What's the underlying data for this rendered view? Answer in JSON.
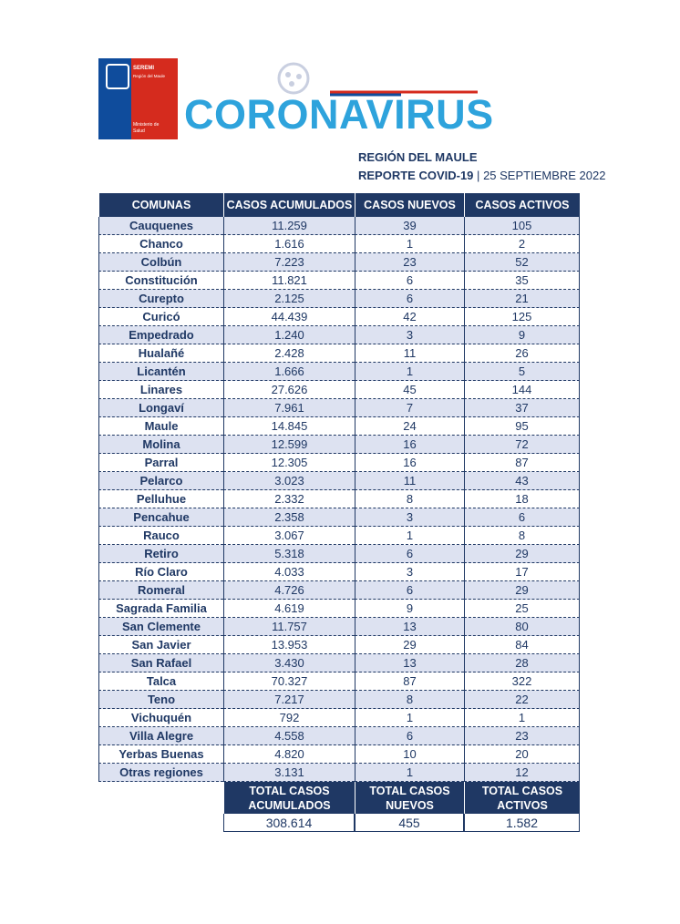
{
  "header": {
    "logo": {
      "line1": "SEREMI",
      "line2": "Región del Maule",
      "line3": "Ministerio de",
      "line4": "Salud"
    },
    "title": "CORONAVIRUS",
    "region": "REGIÓN DEL MAULE",
    "report": "REPORTE COVID-19",
    "separator": "|",
    "date": "25 SEPTIEMBRE 2022"
  },
  "table": {
    "columns": [
      "COMUNAS",
      "CASOS ACUMULADOS",
      "CASOS NUEVOS",
      "CASOS ACTIVOS"
    ],
    "rows": [
      [
        "Cauquenes",
        "11.259",
        "39",
        "105"
      ],
      [
        "Chanco",
        "1.616",
        "1",
        "2"
      ],
      [
        "Colbún",
        "7.223",
        "23",
        "52"
      ],
      [
        "Constitución",
        "11.821",
        "6",
        "35"
      ],
      [
        "Curepto",
        "2.125",
        "6",
        "21"
      ],
      [
        "Curicó",
        "44.439",
        "42",
        "125"
      ],
      [
        "Empedrado",
        "1.240",
        "3",
        "9"
      ],
      [
        "Hualañé",
        "2.428",
        "11",
        "26"
      ],
      [
        "Licantén",
        "1.666",
        "1",
        "5"
      ],
      [
        "Linares",
        "27.626",
        "45",
        "144"
      ],
      [
        "Longaví",
        "7.961",
        "7",
        "37"
      ],
      [
        "Maule",
        "14.845",
        "24",
        "95"
      ],
      [
        "Molina",
        "12.599",
        "16",
        "72"
      ],
      [
        "Parral",
        "12.305",
        "16",
        "87"
      ],
      [
        "Pelarco",
        "3.023",
        "11",
        "43"
      ],
      [
        "Pelluhue",
        "2.332",
        "8",
        "18"
      ],
      [
        "Pencahue",
        "2.358",
        "3",
        "6"
      ],
      [
        "Rauco",
        "3.067",
        "1",
        "8"
      ],
      [
        "Retiro",
        "5.318",
        "6",
        "29"
      ],
      [
        "Río Claro",
        "4.033",
        "3",
        "17"
      ],
      [
        "Romeral",
        "4.726",
        "6",
        "29"
      ],
      [
        "Sagrada Familia",
        "4.619",
        "9",
        "25"
      ],
      [
        "San Clemente",
        "11.757",
        "13",
        "80"
      ],
      [
        "San Javier",
        "13.953",
        "29",
        "84"
      ],
      [
        "San Rafael",
        "3.430",
        "13",
        "28"
      ],
      [
        "Talca",
        "70.327",
        "87",
        "322"
      ],
      [
        "Teno",
        "7.217",
        "8",
        "22"
      ],
      [
        "Vichuquén",
        "792",
        "1",
        "1"
      ],
      [
        "Villa Alegre",
        "4.558",
        "6",
        "23"
      ],
      [
        "Yerbas Buenas",
        "4.820",
        "10",
        "20"
      ],
      [
        "Otras regiones",
        "3.131",
        "1",
        "12"
      ]
    ],
    "totals": {
      "labels": [
        [
          "TOTAL CASOS",
          "ACUMULADOS"
        ],
        [
          "TOTAL CASOS",
          "NUEVOS"
        ],
        [
          "TOTAL CASOS",
          "ACTIVOS"
        ]
      ],
      "values": [
        "308.614",
        "455",
        "1.582"
      ]
    }
  }
}
